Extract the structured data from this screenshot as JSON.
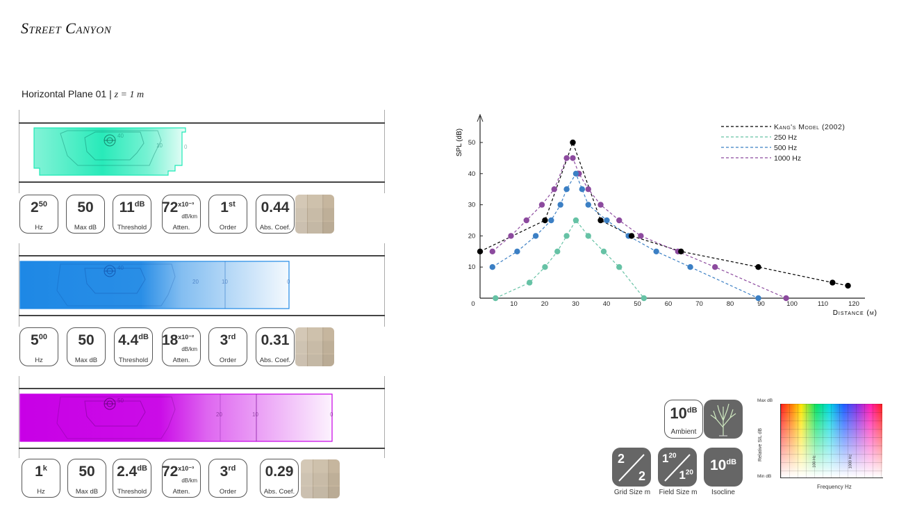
{
  "page": {
    "title": "Street Canyon",
    "plane_label": "Horizontal Plane 01",
    "plane_sep": "|",
    "plane_z": "z = 1 m"
  },
  "panels": [
    {
      "color": "#1de9b6",
      "contour_labels": [
        "40",
        "10",
        "0"
      ],
      "params": {
        "freq": {
          "base": "2",
          "sup": "50",
          "label": "Hz"
        },
        "maxdb": {
          "value": "50",
          "label": "Max dB"
        },
        "threshold": {
          "value": "11",
          "sup": "dB",
          "label": "Threshold"
        },
        "atten": {
          "value": "72",
          "sup": "x10⁻³",
          "unit": "dB/km",
          "label": "Atten."
        },
        "order": {
          "value": "1",
          "sup": "st",
          "label": "Order"
        },
        "abs": {
          "value": "0.44",
          "label": "Abs. Coef."
        }
      }
    },
    {
      "color": "#1e88e5",
      "contour_labels": [
        "40",
        "20",
        "10",
        "0"
      ],
      "params": {
        "freq": {
          "base": "5",
          "sup": "00",
          "label": "Hz"
        },
        "maxdb": {
          "value": "50",
          "label": "Max dB"
        },
        "threshold": {
          "value": "4.4",
          "sup": "dB",
          "label": "Threshold"
        },
        "atten": {
          "value": "18",
          "sup": "x10⁻²",
          "unit": "dB/km",
          "label": "Atten."
        },
        "order": {
          "value": "3",
          "sup": "rd",
          "label": "Order"
        },
        "abs": {
          "value": "0.31",
          "label": "Abs. Coef."
        }
      }
    },
    {
      "color": "#c800e6",
      "contour_labels": [
        "50",
        "20",
        "10",
        "0"
      ],
      "params": {
        "freq": {
          "base": "1",
          "sup": "k",
          "label": "Hz"
        },
        "maxdb": {
          "value": "50",
          "label": "Max dB"
        },
        "threshold": {
          "value": "2.4",
          "sup": "dB",
          "label": "Threshold"
        },
        "atten": {
          "value": "72",
          "sup": "x10⁻³",
          "unit": "dB/km",
          "label": "Atten."
        },
        "order": {
          "value": "3",
          "sup": "rd",
          "label": "Order"
        },
        "abs": {
          "value": "0.29",
          "label": "Abs. Coef."
        }
      }
    }
  ],
  "chart_data": {
    "type": "line",
    "ylabel": "SPL (dB)",
    "xlabel": "Distance (m)",
    "xlim": [
      0,
      130
    ],
    "ylim": [
      0,
      55
    ],
    "xticks": [
      0,
      10,
      20,
      30,
      40,
      50,
      60,
      70,
      80,
      90,
      100,
      110,
      120
    ],
    "yticks": [
      10,
      20,
      30,
      40,
      50
    ],
    "legend_position": "top-right",
    "series": [
      {
        "name": "Kang's Model (2002)",
        "color": "#000000",
        "x": [
          0,
          21,
          30,
          39,
          49,
          65,
          90,
          114,
          119
        ],
        "y": [
          15,
          25,
          50,
          25,
          20,
          15,
          10,
          5,
          4
        ]
      },
      {
        "name": "250 Hz",
        "color": "#66c2a5",
        "x": [
          5,
          16,
          21,
          25,
          28,
          31,
          35,
          40,
          45,
          53
        ],
        "y": [
          0,
          5,
          10,
          15,
          20,
          25,
          20,
          15,
          10,
          0
        ]
      },
      {
        "name": "500 Hz",
        "color": "#3b7fc4",
        "x": [
          4,
          12,
          18,
          23,
          26,
          28,
          31,
          33,
          35,
          41,
          48,
          57,
          68,
          90
        ],
        "y": [
          10,
          15,
          20,
          25,
          30,
          35,
          40,
          35,
          30,
          25,
          20,
          15,
          10,
          0
        ]
      },
      {
        "name": "1000 Hz",
        "color": "#8c4a9e",
        "x": [
          4,
          10,
          15,
          20,
          24,
          28,
          30,
          32,
          35,
          39,
          45,
          52,
          64,
          76,
          99
        ],
        "y": [
          15,
          20,
          25,
          30,
          35,
          45,
          45,
          40,
          35,
          30,
          25,
          20,
          15,
          10,
          0
        ]
      }
    ]
  },
  "controls": {
    "ambient": {
      "value": "10",
      "sup": "dB",
      "label": "Ambient"
    },
    "grid": {
      "top": "2",
      "bottom": "2",
      "label": "Grid Size m"
    },
    "field": {
      "top": "1",
      "top_sup": "20",
      "bottom": "1",
      "bottom_sup": "20",
      "label": "Field Size m"
    },
    "isocline": {
      "value": "10",
      "sup": "dB",
      "label": "Isocline"
    }
  },
  "spectrum": {
    "max_label": "Max dB",
    "min_label": "Min dB",
    "y_title": "Relative SIL dB",
    "x_title": "Frequency Hz",
    "ticks": [
      "100 Hz",
      "1000 Hz"
    ]
  }
}
